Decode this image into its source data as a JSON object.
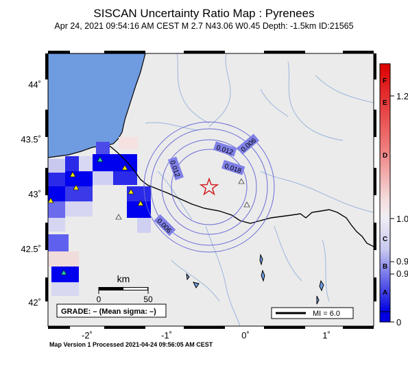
{
  "header": {
    "title": "SISCAN Uncertainty Ratio Map : Pyrenees",
    "subtitle": "Apr 24, 2021 09:54:16 AM CEST   M 2.7   N43.06 W0.45   Depth: -1.5km   ID:21565"
  },
  "footer": {
    "text": "Map Version 1 Processed 2021-04-24 09:56:05 AM CEST"
  },
  "map": {
    "lat_labels": [
      "44˚",
      "43.5˚",
      "43˚",
      "42.5˚",
      "42˚"
    ],
    "lon_labels": [
      "-2˚",
      "-1˚",
      "0˚",
      "1˚"
    ],
    "contour_labels": [
      "0.006",
      "0.012",
      "0.012",
      "0.018",
      "0.006"
    ],
    "epicenter": {
      "lat": 43.06,
      "lon": -0.45
    },
    "scalebar": {
      "unit": "km",
      "ticks": [
        "0",
        "50"
      ]
    },
    "grade_box": "GRADE: – (Mean sigma: –)",
    "mi_box": "MI = 6.0",
    "colors": {
      "ocean": "#6f9be0",
      "land": "#ebebeb",
      "rivers": "#9ab6dc",
      "contours": "#6b6bd6",
      "epicenter": "#d22020",
      "grid_strong": "#0000ee"
    }
  },
  "colorbar": {
    "grades": [
      "F",
      "E",
      "D",
      "C",
      "B",
      "A"
    ],
    "values": [
      "1.2",
      "1.0",
      "0.9",
      "0.9",
      "0"
    ]
  }
}
